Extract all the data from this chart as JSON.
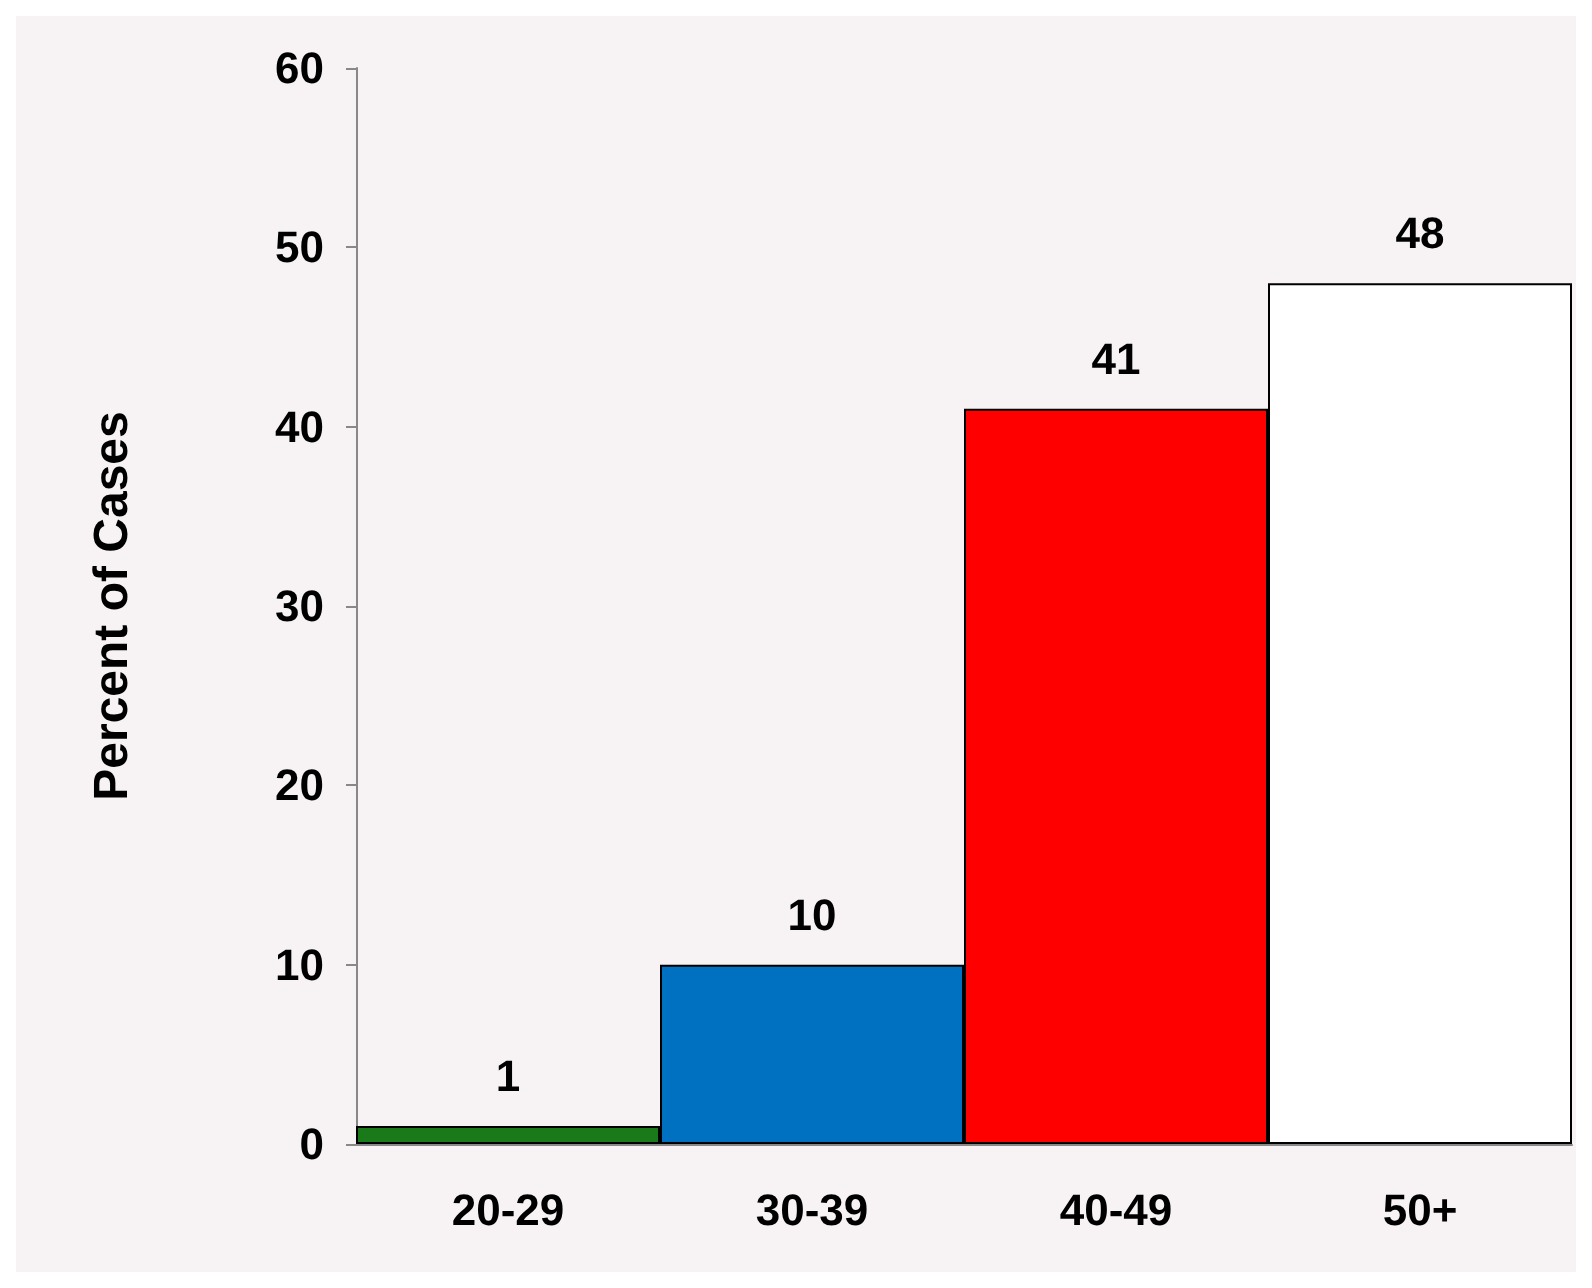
{
  "chart_data": {
    "type": "bar",
    "ylabel": "Percent of Cases",
    "categories": [
      "20-29",
      "30-39",
      "40-49",
      "50+"
    ],
    "values": [
      1,
      10,
      41,
      48
    ],
    "colors": [
      "#1a7a1a",
      "#0070c0",
      "#ff0000",
      "#ffffff"
    ],
    "ylim": [
      0,
      60
    ],
    "yticks": [
      0,
      10,
      20,
      30,
      40,
      50,
      60
    ],
    "data_labels": true
  }
}
